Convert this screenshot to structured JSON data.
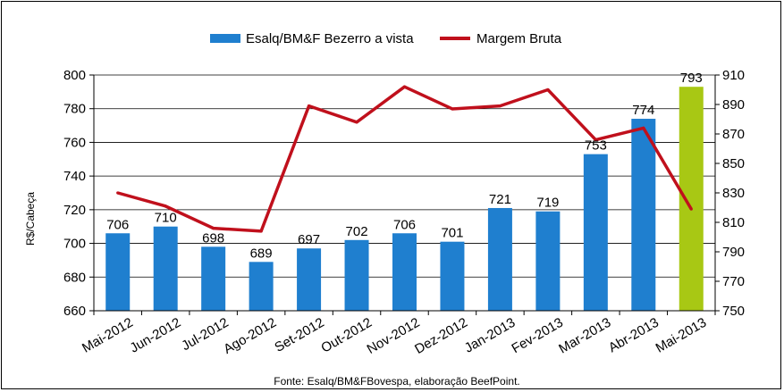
{
  "chart_data": {
    "type": "bar",
    "categories": [
      "Mai-2012",
      "Jun-2012",
      "Jul-2012",
      "Ago-2012",
      "Set-2012",
      "Out-2012",
      "Nov-2012",
      "Dez-2012",
      "Jan-2013",
      "Fev-2013",
      "Mar-2013",
      "Abr-2013",
      "Mai-2013"
    ],
    "series": [
      {
        "name": "Esalq/BM&F Bezerro a vista",
        "type": "bar",
        "axis": "left",
        "color": "#1f7fcf",
        "highlight_last_color": "#a8c814",
        "values": [
          706,
          710,
          698,
          689,
          697,
          702,
          706,
          701,
          721,
          719,
          753,
          774,
          793
        ],
        "labels": [
          "706",
          "710",
          "698",
          "689",
          "697",
          "702",
          "706",
          "701",
          "721",
          "719",
          "753",
          "774",
          "793"
        ]
      },
      {
        "name": "Margem Bruta",
        "type": "line",
        "axis": "right",
        "color": "#c0101c",
        "values": [
          830,
          821,
          806,
          804,
          889,
          878,
          902,
          887,
          889,
          900,
          866,
          874,
          819
        ]
      }
    ],
    "ylabel": "R$/Cabeça",
    "ylim": [
      660,
      800
    ],
    "yticks": [
      "660",
      "680",
      "700",
      "720",
      "740",
      "760",
      "780",
      "800"
    ],
    "y2lim": [
      750,
      910
    ],
    "y2ticks": [
      "750",
      "770",
      "790",
      "810",
      "830",
      "850",
      "870",
      "890",
      "910"
    ],
    "grid": true,
    "legend": "top-center"
  },
  "source_note": "Fonte:  Esalq/BM&FBovespa,  elaboração  BeefPoint."
}
